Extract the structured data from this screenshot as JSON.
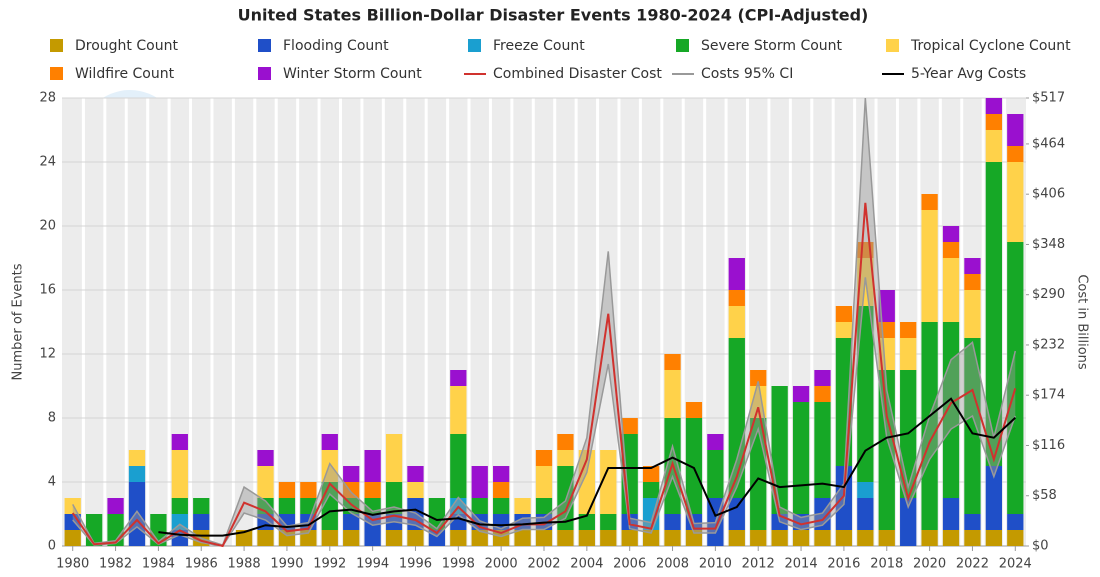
{
  "chart_data": {
    "type": "bar",
    "title": "United States Billion-Dollar Disaster Events 1980-2024 (CPI-Adjusted)",
    "y_label": "Number of Events",
    "y2_label": "Cost in Billions",
    "x": [
      1980,
      1981,
      1982,
      1983,
      1984,
      1985,
      1986,
      1987,
      1988,
      1989,
      1990,
      1991,
      1992,
      1993,
      1994,
      1995,
      1996,
      1997,
      1998,
      1999,
      2000,
      2001,
      2002,
      2003,
      2004,
      2005,
      2006,
      2007,
      2008,
      2009,
      2010,
      2011,
      2012,
      2013,
      2014,
      2015,
      2016,
      2017,
      2018,
      2019,
      2020,
      2021,
      2022,
      2023,
      2024
    ],
    "xlim": [
      1979.5,
      2024.5
    ],
    "xticks": [
      1980,
      1982,
      1984,
      1986,
      1988,
      1990,
      1992,
      1994,
      1996,
      1998,
      2000,
      2002,
      2004,
      2006,
      2008,
      2010,
      2012,
      2014,
      2016,
      2018,
      2020,
      2022,
      2024
    ],
    "ylim": [
      0,
      28
    ],
    "yticks": [
      0,
      4,
      8,
      12,
      16,
      20,
      24,
      28
    ],
    "y2lim": [
      0,
      517
    ],
    "y2ticks": [
      {
        "value": 0,
        "label": "$0"
      },
      {
        "value": 58,
        "label": "$58"
      },
      {
        "value": 116,
        "label": "$116"
      },
      {
        "value": 174,
        "label": "$174"
      },
      {
        "value": 232,
        "label": "$232"
      },
      {
        "value": 290,
        "label": "$290"
      },
      {
        "value": 348,
        "label": "$348"
      },
      {
        "value": 406,
        "label": "$406"
      },
      {
        "value": 464,
        "label": "$464"
      },
      {
        "value": 517,
        "label": "$517"
      }
    ],
    "grid": true,
    "series": [
      {
        "name": "Drought Count",
        "type": "bar",
        "color": "#c49a00",
        "values": [
          1,
          0,
          0,
          0,
          0,
          0,
          1,
          0,
          1,
          1,
          1,
          1,
          1,
          1,
          0,
          1,
          1,
          0,
          1,
          1,
          1,
          1,
          1,
          1,
          1,
          1,
          1,
          1,
          1,
          1,
          0,
          1,
          1,
          1,
          1,
          1,
          1,
          1,
          1,
          0,
          1,
          1,
          1,
          1,
          1
        ]
      },
      {
        "name": "Flooding Count",
        "type": "bar",
        "color": "#1f4fc8",
        "values": [
          1,
          0,
          0,
          4,
          0,
          1,
          1,
          0,
          0,
          1,
          1,
          1,
          0,
          1,
          2,
          1,
          2,
          1,
          1,
          1,
          1,
          1,
          1,
          0,
          0,
          0,
          1,
          0,
          1,
          1,
          3,
          2,
          0,
          1,
          1,
          2,
          4,
          2,
          0,
          3,
          0,
          2,
          1,
          4,
          1
        ]
      },
      {
        "name": "Freeze Count",
        "type": "bar",
        "color": "#1a9fd0",
        "values": [
          0,
          0,
          0,
          1,
          0,
          1,
          0,
          0,
          0,
          0,
          0,
          0,
          0,
          0,
          0,
          0,
          0,
          0,
          1,
          0,
          0,
          0,
          0,
          0,
          0,
          0,
          0,
          2,
          0,
          0,
          0,
          0,
          0,
          0,
          0,
          0,
          0,
          1,
          0,
          0,
          0,
          0,
          0,
          0,
          0
        ]
      },
      {
        "name": "Severe Storm Count",
        "type": "bar",
        "color": "#16a826",
        "values": [
          0,
          2,
          2,
          0,
          2,
          1,
          1,
          0,
          0,
          1,
          1,
          1,
          3,
          1,
          1,
          2,
          0,
          2,
          4,
          1,
          1,
          0,
          1,
          4,
          1,
          1,
          5,
          1,
          6,
          6,
          3,
          10,
          7,
          8,
          7,
          6,
          8,
          11,
          10,
          8,
          13,
          11,
          11,
          19,
          17
        ]
      },
      {
        "name": "Tropical Cyclone Count",
        "type": "bar",
        "color": "#ffd24a",
        "values": [
          1,
          0,
          0,
          1,
          0,
          3,
          0,
          0,
          0,
          2,
          0,
          0,
          2,
          0,
          0,
          3,
          1,
          0,
          3,
          0,
          0,
          1,
          2,
          1,
          4,
          4,
          0,
          0,
          3,
          0,
          0,
          2,
          2,
          0,
          0,
          0,
          1,
          3,
          2,
          2,
          7,
          4,
          3,
          2,
          5
        ]
      },
      {
        "name": "Wildfire Count",
        "type": "bar",
        "color": "#ff8000",
        "values": [
          0,
          0,
          0,
          0,
          0,
          0,
          0,
          0,
          0,
          0,
          1,
          1,
          0,
          1,
          1,
          0,
          0,
          0,
          0,
          0,
          1,
          0,
          1,
          1,
          0,
          0,
          1,
          1,
          1,
          1,
          0,
          1,
          1,
          0,
          0,
          1,
          1,
          1,
          1,
          1,
          1,
          1,
          1,
          1,
          1
        ]
      },
      {
        "name": "Winter Storm Count",
        "type": "bar",
        "color": "#9a10cf",
        "values": [
          0,
          0,
          1,
          0,
          0,
          1,
          0,
          0,
          0,
          1,
          0,
          0,
          1,
          1,
          2,
          0,
          1,
          0,
          1,
          2,
          1,
          0,
          0,
          0,
          0,
          0,
          0,
          0,
          0,
          0,
          1,
          2,
          0,
          0,
          1,
          1,
          0,
          0,
          2,
          0,
          0,
          1,
          1,
          1,
          2
        ]
      },
      {
        "name": "Combined Disaster Cost",
        "type": "line",
        "axis": "y2",
        "color": "#d0322e",
        "values": [
          38,
          2,
          4,
          30,
          3,
          18,
          6,
          0,
          50,
          40,
          17,
          20,
          72,
          48,
          30,
          35,
          30,
          15,
          45,
          22,
          15,
          25,
          25,
          40,
          100,
          268,
          25,
          20,
          95,
          20,
          20,
          80,
          160,
          35,
          25,
          30,
          58,
          396,
          150,
          55,
          120,
          165,
          180,
          100,
          182
        ]
      },
      {
        "name": "Costs 95% CI",
        "type": "band",
        "axis": "y2",
        "color": "#999999",
        "low": [
          30,
          1,
          3,
          22,
          2,
          13,
          4,
          0,
          38,
          30,
          12,
          15,
          60,
          38,
          24,
          28,
          24,
          11,
          36,
          17,
          11,
          19,
          19,
          32,
          85,
          210,
          20,
          15,
          80,
          15,
          15,
          68,
          135,
          28,
          19,
          24,
          48,
          310,
          125,
          45,
          100,
          135,
          150,
          80,
          150
        ],
        "high": [
          48,
          3,
          6,
          40,
          5,
          25,
          9,
          1,
          68,
          52,
          23,
          27,
          95,
          62,
          40,
          45,
          38,
          20,
          56,
          29,
          20,
          32,
          33,
          52,
          125,
          340,
          32,
          27,
          115,
          26,
          27,
          100,
          190,
          45,
          33,
          38,
          72,
          517,
          180,
          68,
          150,
          215,
          235,
          125,
          225
        ]
      },
      {
        "name": "5-Year Avg Costs",
        "type": "line",
        "axis": "y2",
        "color": "#000000",
        "values": [
          null,
          null,
          null,
          null,
          16,
          13,
          12,
          12,
          16,
          24,
          22,
          24,
          40,
          42,
          36,
          40,
          42,
          30,
          32,
          25,
          24,
          25,
          27,
          28,
          35,
          90,
          90,
          90,
          102,
          90,
          35,
          45,
          78,
          68,
          70,
          72,
          68,
          110,
          125,
          130,
          150,
          170,
          130,
          125,
          148
        ]
      }
    ]
  }
}
